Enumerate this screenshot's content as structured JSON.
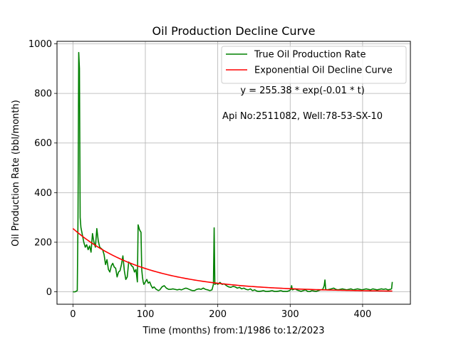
{
  "chart_data": {
    "type": "line",
    "title": "Oil Production Decline Curve",
    "xlabel": "Time (months) from:1/1986 to:12/2023",
    "ylabel": "Oil Production Rate (bbl/month)",
    "xlim": [
      -22,
      466
    ],
    "ylim": [
      -50,
      1010
    ],
    "xticks": [
      0,
      100,
      200,
      300,
      400
    ],
    "yticks": [
      0,
      200,
      400,
      600,
      800,
      1000
    ],
    "grid": true,
    "legend_position": "top-right",
    "annotations": [
      {
        "text": "y = 255.38 * exp(-0.01 * t)",
        "x": 317,
        "y": 800
      },
      {
        "text": "Api No:2511082, Well:78-53-SX-10",
        "x": 317,
        "y": 697
      }
    ],
    "series": [
      {
        "name": "True Oil Production Rate",
        "color": "#008000",
        "points": [
          [
            0,
            0
          ],
          [
            3,
            0
          ],
          [
            6,
            5
          ],
          [
            7,
            300
          ],
          [
            8,
            965
          ],
          [
            9,
            900
          ],
          [
            10,
            300
          ],
          [
            11,
            260
          ],
          [
            13,
            230
          ],
          [
            15,
            200
          ],
          [
            17,
            180
          ],
          [
            19,
            190
          ],
          [
            21,
            170
          ],
          [
            23,
            185
          ],
          [
            25,
            160
          ],
          [
            27,
            235
          ],
          [
            29,
            200
          ],
          [
            31,
            180
          ],
          [
            33,
            255
          ],
          [
            35,
            205
          ],
          [
            37,
            180
          ],
          [
            39,
            175
          ],
          [
            41,
            170
          ],
          [
            43,
            150
          ],
          [
            45,
            110
          ],
          [
            47,
            130
          ],
          [
            49,
            90
          ],
          [
            51,
            80
          ],
          [
            53,
            105
          ],
          [
            55,
            115
          ],
          [
            57,
            100
          ],
          [
            59,
            95
          ],
          [
            61,
            60
          ],
          [
            63,
            80
          ],
          [
            65,
            85
          ],
          [
            67,
            110
          ],
          [
            69,
            145
          ],
          [
            71,
            85
          ],
          [
            73,
            50
          ],
          [
            75,
            60
          ],
          [
            77,
            120
          ],
          [
            79,
            115
          ],
          [
            81,
            105
          ],
          [
            83,
            100
          ],
          [
            85,
            80
          ],
          [
            87,
            90
          ],
          [
            89,
            40
          ],
          [
            90,
            270
          ],
          [
            92,
            250
          ],
          [
            94,
            240
          ],
          [
            95,
            90
          ],
          [
            96,
            60
          ],
          [
            97,
            40
          ],
          [
            98,
            30
          ],
          [
            100,
            40
          ],
          [
            102,
            50
          ],
          [
            104,
            35
          ],
          [
            106,
            40
          ],
          [
            108,
            25
          ],
          [
            110,
            15
          ],
          [
            112,
            20
          ],
          [
            115,
            10
          ],
          [
            118,
            5
          ],
          [
            120,
            8
          ],
          [
            123,
            20
          ],
          [
            126,
            25
          ],
          [
            129,
            15
          ],
          [
            132,
            10
          ],
          [
            135,
            10
          ],
          [
            138,
            12
          ],
          [
            141,
            10
          ],
          [
            144,
            8
          ],
          [
            147,
            10
          ],
          [
            150,
            8
          ],
          [
            153,
            12
          ],
          [
            156,
            15
          ],
          [
            159,
            12
          ],
          [
            162,
            8
          ],
          [
            165,
            5
          ],
          [
            168,
            5
          ],
          [
            171,
            10
          ],
          [
            174,
            12
          ],
          [
            177,
            10
          ],
          [
            180,
            15
          ],
          [
            183,
            10
          ],
          [
            186,
            8
          ],
          [
            189,
            5
          ],
          [
            192,
            8
          ],
          [
            194,
            30
          ],
          [
            195,
            258
          ],
          [
            196,
            30
          ],
          [
            198,
            35
          ],
          [
            200,
            30
          ],
          [
            203,
            38
          ],
          [
            206,
            30
          ],
          [
            209,
            32
          ],
          [
            212,
            25
          ],
          [
            215,
            20
          ],
          [
            218,
            18
          ],
          [
            221,
            22
          ],
          [
            224,
            20
          ],
          [
            227,
            15
          ],
          [
            230,
            18
          ],
          [
            233,
            12
          ],
          [
            236,
            15
          ],
          [
            239,
            10
          ],
          [
            242,
            8
          ],
          [
            245,
            12
          ],
          [
            248,
            5
          ],
          [
            251,
            8
          ],
          [
            254,
            3
          ],
          [
            257,
            2
          ],
          [
            260,
            3
          ],
          [
            263,
            5
          ],
          [
            266,
            2
          ],
          [
            269,
            2
          ],
          [
            272,
            3
          ],
          [
            275,
            5
          ],
          [
            278,
            2
          ],
          [
            281,
            2
          ],
          [
            284,
            3
          ],
          [
            287,
            5
          ],
          [
            290,
            2
          ],
          [
            293,
            2
          ],
          [
            296,
            2
          ],
          [
            299,
            5
          ],
          [
            301,
            10
          ],
          [
            302,
            25
          ],
          [
            303,
            8
          ],
          [
            305,
            10
          ],
          [
            307,
            12
          ],
          [
            309,
            8
          ],
          [
            312,
            5
          ],
          [
            315,
            2
          ],
          [
            318,
            5
          ],
          [
            321,
            8
          ],
          [
            324,
            2
          ],
          [
            327,
            1
          ],
          [
            330,
            5
          ],
          [
            333,
            3
          ],
          [
            336,
            2
          ],
          [
            339,
            5
          ],
          [
            342,
            8
          ],
          [
            345,
            10
          ],
          [
            347,
            25
          ],
          [
            348,
            48
          ],
          [
            349,
            10
          ],
          [
            351,
            8
          ],
          [
            354,
            10
          ],
          [
            357,
            12
          ],
          [
            360,
            15
          ],
          [
            363,
            10
          ],
          [
            366,
            8
          ],
          [
            369,
            10
          ],
          [
            372,
            12
          ],
          [
            375,
            10
          ],
          [
            378,
            8
          ],
          [
            381,
            10
          ],
          [
            384,
            12
          ],
          [
            387,
            8
          ],
          [
            390,
            10
          ],
          [
            393,
            12
          ],
          [
            396,
            10
          ],
          [
            399,
            8
          ],
          [
            402,
            10
          ],
          [
            405,
            12
          ],
          [
            408,
            10
          ],
          [
            411,
            8
          ],
          [
            414,
            12
          ],
          [
            417,
            10
          ],
          [
            420,
            8
          ],
          [
            423,
            10
          ],
          [
            426,
            12
          ],
          [
            429,
            10
          ],
          [
            432,
            12
          ],
          [
            435,
            8
          ],
          [
            438,
            10
          ],
          [
            440,
            12
          ],
          [
            441,
            40
          ]
        ]
      },
      {
        "name": "Exponential Oil Decline Curve",
        "color": "#ff0000",
        "formula": {
          "a": 255.38,
          "b": 0.01,
          "t_start": 0,
          "t_end": 441
        }
      }
    ]
  }
}
